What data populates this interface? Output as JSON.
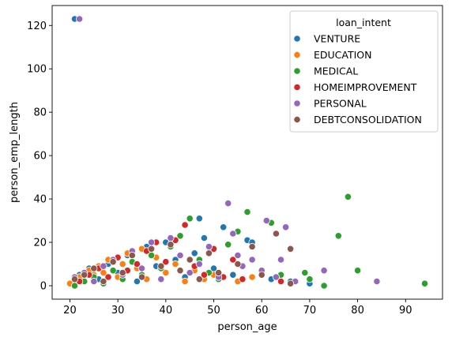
{
  "chart_data": {
    "type": "scatter",
    "xlabel": "person_age",
    "ylabel": "person_emp_length",
    "xlim": [
      16.3,
      97.7
    ],
    "ylim": [
      -6.2,
      129.2
    ],
    "xticks": [
      20,
      30,
      40,
      50,
      60,
      70,
      80,
      90
    ],
    "yticks": [
      0,
      20,
      40,
      60,
      80,
      100,
      120
    ],
    "grid": false,
    "legend": {
      "title": "loan_intent",
      "placement": "top-right"
    },
    "series": [
      {
        "name": "VENTURE",
        "color": "#1f77b4",
        "points": [
          [
            21,
            123
          ],
          [
            22,
            5
          ],
          [
            24,
            8
          ],
          [
            26,
            3
          ],
          [
            28,
            10
          ],
          [
            30,
            6
          ],
          [
            32,
            14
          ],
          [
            34,
            2
          ],
          [
            36,
            18
          ],
          [
            38,
            9
          ],
          [
            40,
            20
          ],
          [
            42,
            12
          ],
          [
            44,
            4
          ],
          [
            46,
            15
          ],
          [
            47,
            31
          ],
          [
            48,
            22
          ],
          [
            50,
            8
          ],
          [
            52,
            27
          ],
          [
            54,
            5
          ],
          [
            57,
            21
          ],
          [
            58,
            20
          ],
          [
            62,
            3
          ],
          [
            66,
            2
          ],
          [
            70,
            1
          ]
        ]
      },
      {
        "name": "EDUCATION",
        "color": "#ff7f0e",
        "points": [
          [
            20,
            1
          ],
          [
            21,
            3
          ],
          [
            22,
            4
          ],
          [
            23,
            2
          ],
          [
            24,
            7
          ],
          [
            25,
            5
          ],
          [
            26,
            9
          ],
          [
            27,
            6
          ],
          [
            28,
            12
          ],
          [
            30,
            4
          ],
          [
            31,
            10
          ],
          [
            32,
            15
          ],
          [
            34,
            8
          ],
          [
            35,
            17
          ],
          [
            36,
            3
          ],
          [
            38,
            13
          ],
          [
            40,
            6
          ],
          [
            42,
            10
          ],
          [
            44,
            2
          ],
          [
            46,
            7
          ],
          [
            48,
            3
          ],
          [
            50,
            5
          ],
          [
            55,
            2
          ],
          [
            58,
            4
          ]
        ]
      },
      {
        "name": "MEDICAL",
        "color": "#2ca02c",
        "points": [
          [
            21,
            0
          ],
          [
            23,
            2
          ],
          [
            25,
            4
          ],
          [
            27,
            1
          ],
          [
            29,
            7
          ],
          [
            31,
            3
          ],
          [
            33,
            11
          ],
          [
            35,
            5
          ],
          [
            37,
            14
          ],
          [
            39,
            8
          ],
          [
            41,
            18
          ],
          [
            43,
            23
          ],
          [
            45,
            31
          ],
          [
            47,
            12
          ],
          [
            49,
            6
          ],
          [
            51,
            3
          ],
          [
            53,
            19
          ],
          [
            55,
            25
          ],
          [
            57,
            34
          ],
          [
            62,
            29
          ],
          [
            64,
            5
          ],
          [
            69,
            6
          ],
          [
            70,
            3
          ],
          [
            73,
            0
          ],
          [
            76,
            23
          ],
          [
            78,
            41
          ],
          [
            80,
            7
          ],
          [
            94,
            1
          ]
        ]
      },
      {
        "name": "HOMEIMPROVEMENT",
        "color": "#d62728",
        "points": [
          [
            22,
            2
          ],
          [
            24,
            5
          ],
          [
            26,
            8
          ],
          [
            28,
            4
          ],
          [
            30,
            13
          ],
          [
            32,
            7
          ],
          [
            34,
            10
          ],
          [
            36,
            16
          ],
          [
            38,
            20
          ],
          [
            40,
            11
          ],
          [
            42,
            21
          ],
          [
            44,
            28
          ],
          [
            46,
            9
          ],
          [
            48,
            5
          ],
          [
            50,
            17
          ],
          [
            52,
            4
          ],
          [
            54,
            12
          ],
          [
            56,
            3
          ],
          [
            60,
            6
          ],
          [
            64,
            2
          ]
        ]
      },
      {
        "name": "PERSONAL",
        "color": "#9467bd",
        "points": [
          [
            22,
            123
          ],
          [
            21,
            4
          ],
          [
            23,
            6
          ],
          [
            25,
            2
          ],
          [
            27,
            9
          ],
          [
            29,
            12
          ],
          [
            31,
            5
          ],
          [
            33,
            16
          ],
          [
            35,
            8
          ],
          [
            37,
            20
          ],
          [
            39,
            3
          ],
          [
            41,
            22
          ],
          [
            43,
            14
          ],
          [
            45,
            6
          ],
          [
            47,
            10
          ],
          [
            49,
            18
          ],
          [
            51,
            4
          ],
          [
            53,
            38
          ],
          [
            54,
            24
          ],
          [
            55,
            14
          ],
          [
            56,
            9
          ],
          [
            58,
            12
          ],
          [
            60,
            7
          ],
          [
            61,
            30
          ],
          [
            63,
            4
          ],
          [
            64,
            12
          ],
          [
            65,
            27
          ],
          [
            67,
            2
          ],
          [
            73,
            7
          ],
          [
            84,
            2
          ]
        ]
      },
      {
        "name": "DEBTCONSOLIDATION",
        "color": "#8c564b",
        "points": [
          [
            21,
            3
          ],
          [
            23,
            5
          ],
          [
            25,
            8
          ],
          [
            27,
            2
          ],
          [
            29,
            11
          ],
          [
            31,
            6
          ],
          [
            33,
            14
          ],
          [
            35,
            4
          ],
          [
            37,
            17
          ],
          [
            39,
            9
          ],
          [
            41,
            19
          ],
          [
            43,
            7
          ],
          [
            45,
            12
          ],
          [
            47,
            3
          ],
          [
            49,
            15
          ],
          [
            51,
            6
          ],
          [
            55,
            10
          ],
          [
            58,
            18
          ],
          [
            60,
            5
          ],
          [
            63,
            24
          ],
          [
            66,
            17
          ],
          [
            66,
            1
          ]
        ]
      }
    ]
  }
}
